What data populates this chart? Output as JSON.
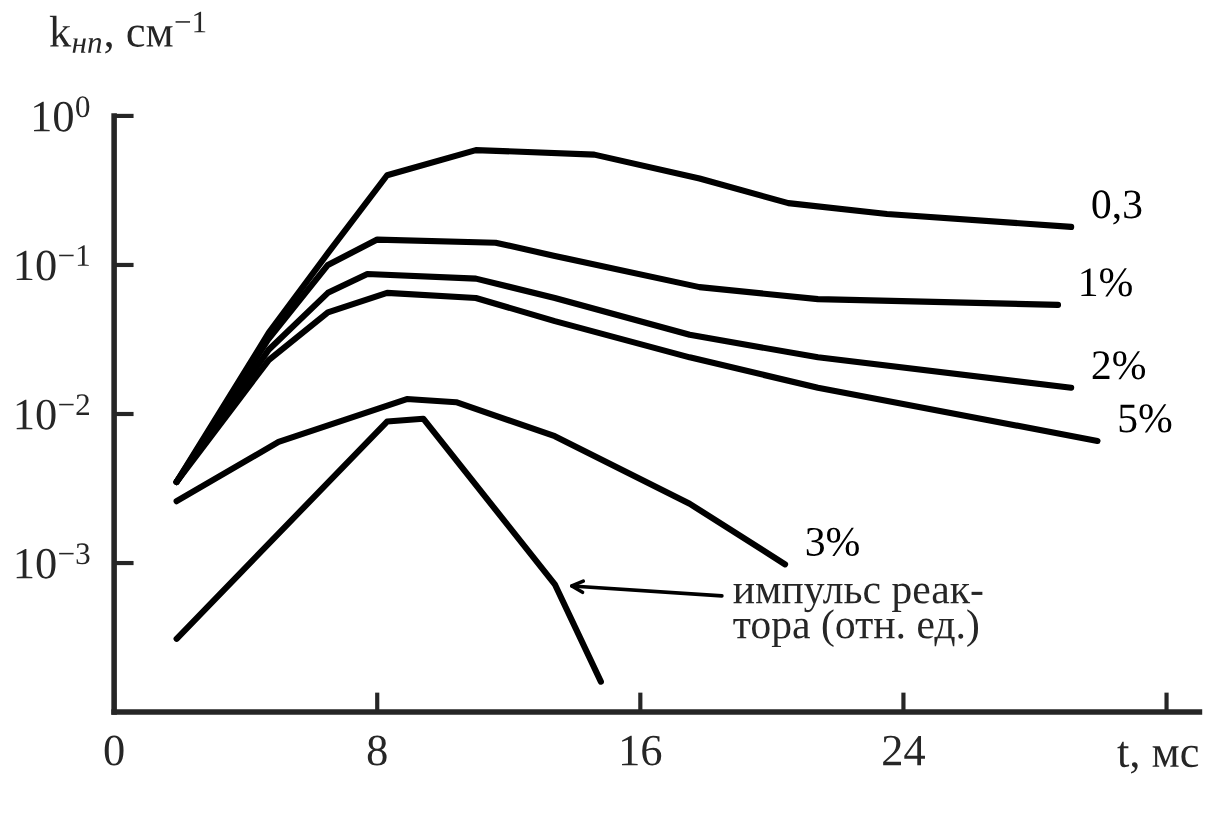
{
  "chart_data": {
    "type": "line",
    "xlabel": "t, мс",
    "ylabel": "k$_{нп}$, см$^{−1}$",
    "log": "y",
    "xlim": [
      0,
      33
    ],
    "ylim": [
      0.0001,
      1
    ],
    "xticks": [
      0,
      8,
      16,
      24,
      {
        "value": 32,
        "label": null
      }
    ],
    "yticks": [
      {
        "value": 1,
        "label": "10$^{0}$"
      },
      {
        "value": 0.1,
        "label": "10$^{−1}$"
      },
      {
        "value": 0.01,
        "label": "10$^{−2}$"
      },
      {
        "value": 0.001,
        "label": "10$^{−3}$"
      }
    ],
    "grid": false,
    "legend": false,
    "marker": "none",
    "line_style": "solid",
    "series": [
      {
        "name": "0,3",
        "color": "#000000",
        "x": [
          1.9,
          4.7,
          6.5,
          8.3,
          11,
          14.6,
          17.8,
          20.5,
          23.5,
          29.1
        ],
        "values": [
          0.0035,
          0.035,
          0.12,
          0.4,
          0.59,
          0.55,
          0.38,
          0.26,
          0.22,
          0.18
        ]
      },
      {
        "name": "1%",
        "color": "#000000",
        "x": [
          1.9,
          4.7,
          6.5,
          8,
          11.6,
          13.4,
          17.8,
          21.4,
          28.7
        ],
        "values": [
          0.0035,
          0.032,
          0.1,
          0.148,
          0.141,
          0.115,
          0.071,
          0.059,
          0.054
        ]
      },
      {
        "name": "2%",
        "color": "#000000",
        "x": [
          1.9,
          4.7,
          6.5,
          7.7,
          11,
          13.4,
          17.5,
          21.4,
          29.1
        ],
        "values": [
          0.0035,
          0.027,
          0.065,
          0.087,
          0.081,
          0.06,
          0.034,
          0.024,
          0.015
        ]
      },
      {
        "name": "5%",
        "color": "#000000",
        "x": [
          1.9,
          4.7,
          6.5,
          8.3,
          11,
          13.4,
          17.5,
          21.4,
          29.9
        ],
        "values": [
          0.0035,
          0.023,
          0.048,
          0.065,
          0.06,
          0.042,
          0.024,
          0.015,
          0.0066
        ]
      },
      {
        "name": "3%",
        "color": "#000000",
        "x": [
          1.9,
          5,
          8.9,
          10.4,
          13.4,
          17.5,
          20.4
        ],
        "values": [
          0.0026,
          0.0065,
          0.0126,
          0.012,
          0.0071,
          0.0025,
          0.00098
        ]
      },
      {
        "color": "#000000",
        "x": [
          1.9,
          8.3,
          9.4,
          13.4,
          14.8
        ],
        "values": [
          0.00031,
          0.0089,
          0.0093,
          0.00072,
          0.00016
        ]
      }
    ],
    "annotations": [
      "импульс реак-\nтора (отн. ед.)"
    ]
  }
}
